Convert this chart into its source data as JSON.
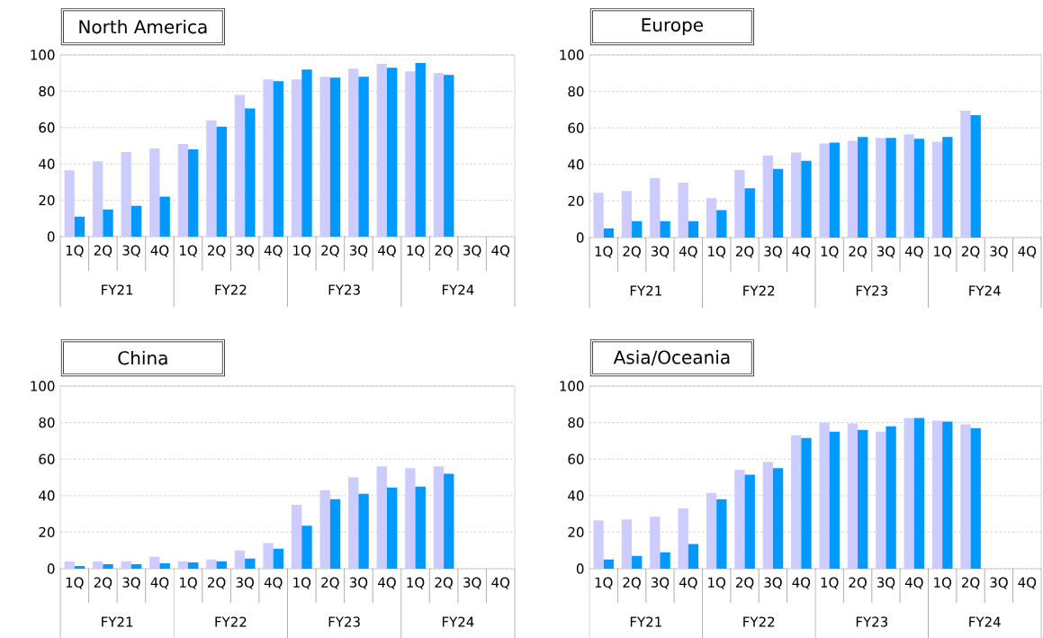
{
  "chart_data": [
    {
      "type": "bar",
      "title": "North America",
      "categories": [
        "1Q",
        "2Q",
        "3Q",
        "4Q",
        "1Q",
        "2Q",
        "3Q",
        "4Q",
        "1Q",
        "2Q",
        "3Q",
        "4Q",
        "1Q",
        "2Q",
        "3Q",
        "4Q"
      ],
      "series": [
        {
          "color": "#ccccff",
          "values": [
            36.5,
            41.5,
            46.5,
            48.5,
            51,
            64,
            78,
            86.5,
            86.5,
            88,
            92.5,
            95,
            91,
            90,
            null,
            null
          ]
        },
        {
          "color": "#0099ff",
          "values": [
            11,
            15,
            17,
            22,
            48,
            60.5,
            70.5,
            85.5,
            92,
            87.5,
            88,
            93,
            95.5,
            89,
            null,
            null
          ]
        }
      ],
      "ylim": [
        0,
        100
      ],
      "yticks": [
        0,
        20,
        40,
        60,
        80,
        100
      ],
      "grid": "y",
      "annotations": [
        "FY21",
        "FY22",
        "FY23",
        "FY24"
      ]
    },
    {
      "type": "bar",
      "title": "Europe",
      "categories": [
        "1Q",
        "2Q",
        "3Q",
        "4Q",
        "1Q",
        "2Q",
        "3Q",
        "4Q",
        "1Q",
        "2Q",
        "3Q",
        "4Q",
        "1Q",
        "2Q",
        "3Q",
        "4Q"
      ],
      "series": [
        {
          "color": "#ccccff",
          "values": [
            24.5,
            25.5,
            32.5,
            30,
            21.5,
            37,
            45,
            46.5,
            51.5,
            53,
            54.5,
            56.5,
            52.5,
            69.5,
            null,
            null
          ]
        },
        {
          "color": "#0099ff",
          "values": [
            5,
            9,
            9,
            9,
            15,
            27,
            37.5,
            42,
            52,
            55,
            54.5,
            54,
            55,
            67,
            null,
            null
          ]
        }
      ],
      "ylim": [
        0,
        100
      ],
      "yticks": [
        0,
        20,
        40,
        60,
        80,
        100
      ],
      "grid": "y",
      "annotations": [
        "FY21",
        "FY22",
        "FY23",
        "FY24"
      ]
    },
    {
      "type": "bar",
      "title": "China",
      "categories": [
        "1Q",
        "2Q",
        "3Q",
        "4Q",
        "1Q",
        "2Q",
        "3Q",
        "4Q",
        "1Q",
        "2Q",
        "3Q",
        "4Q",
        "1Q",
        "2Q",
        "3Q",
        "4Q"
      ],
      "series": [
        {
          "color": "#ccccff",
          "values": [
            4,
            4,
            4,
            6.5,
            4,
            5,
            10,
            14,
            35,
            43,
            50,
            56,
            55,
            56,
            null,
            null
          ]
        },
        {
          "color": "#0099ff",
          "values": [
            1.5,
            2.5,
            2.5,
            3,
            3.5,
            4,
            5.5,
            11,
            23.5,
            38,
            41,
            44.5,
            45,
            52,
            null,
            null
          ]
        }
      ],
      "ylim": [
        0,
        100
      ],
      "yticks": [
        0,
        20,
        40,
        60,
        80,
        100
      ],
      "grid": "y",
      "annotations": [
        "FY21",
        "FY22",
        "FY23",
        "FY24"
      ]
    },
    {
      "type": "bar",
      "title": "Asia/Oceania",
      "categories": [
        "1Q",
        "2Q",
        "3Q",
        "4Q",
        "1Q",
        "2Q",
        "3Q",
        "4Q",
        "1Q",
        "2Q",
        "3Q",
        "4Q",
        "1Q",
        "2Q",
        "3Q",
        "4Q"
      ],
      "series": [
        {
          "color": "#ccccff",
          "values": [
            26.5,
            27,
            28.5,
            33,
            41.5,
            54,
            58.5,
            73,
            80,
            79.5,
            75,
            82.5,
            81,
            79,
            null,
            null
          ]
        },
        {
          "color": "#0099ff",
          "values": [
            5,
            7,
            9,
            13.5,
            38,
            51.5,
            55,
            71.5,
            75,
            76,
            78,
            82.5,
            80.5,
            77,
            null,
            null
          ]
        }
      ],
      "ylim": [
        0,
        100
      ],
      "yticks": [
        0,
        20,
        40,
        60,
        80,
        100
      ],
      "grid": "y",
      "annotations": [
        "FY21",
        "FY22",
        "FY23",
        "FY24"
      ]
    }
  ]
}
